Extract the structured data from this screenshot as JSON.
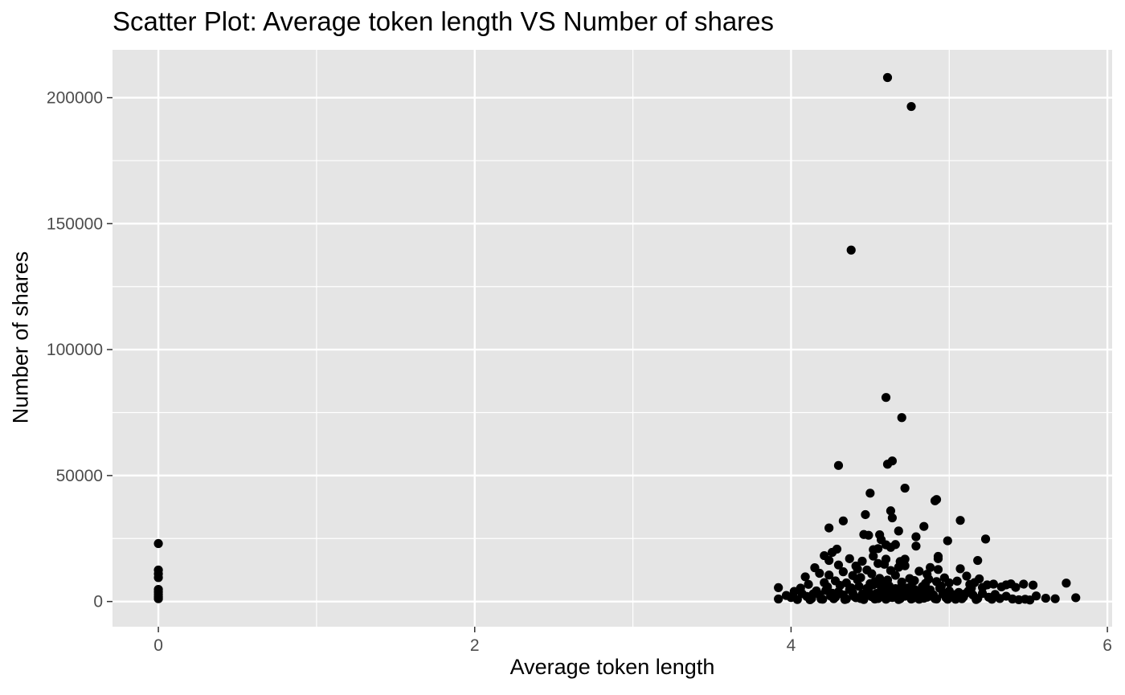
{
  "chart_data": {
    "type": "scatter",
    "title": "Scatter Plot: Average token length VS Number of shares",
    "xlabel": "Average token length",
    "ylabel": "Number of shares",
    "xlim": [
      -0.29,
      6.03
    ],
    "ylim": [
      -10000,
      219000
    ],
    "x_ticks": [
      0,
      2,
      4,
      6
    ],
    "x_tick_labels": [
      "0",
      "2",
      "4",
      "6"
    ],
    "x_minor_ticks": [
      1,
      3,
      5
    ],
    "y_ticks": [
      0,
      50000,
      100000,
      150000,
      200000
    ],
    "y_tick_labels": [
      "0",
      "50000",
      "100000",
      "150000",
      "200000"
    ],
    "y_minor_ticks": [
      25000,
      75000,
      125000,
      175000
    ],
    "grid": true,
    "panel_background": "#e5e5e5",
    "grid_color": "#ffffff",
    "point_color": "#000000",
    "points": [
      [
        0,
        23000
      ],
      [
        0,
        12500
      ],
      [
        0,
        11000
      ],
      [
        0,
        9500
      ],
      [
        0,
        4800
      ],
      [
        0,
        3800
      ],
      [
        0,
        2800
      ],
      [
        0,
        1800
      ],
      [
        0,
        1100
      ],
      [
        4.61,
        208000
      ],
      [
        4.76,
        196500
      ],
      [
        4.38,
        139500
      ],
      [
        4.6,
        81000
      ],
      [
        4.7,
        73000
      ],
      [
        4.3,
        54000
      ],
      [
        4.61,
        54500
      ],
      [
        4.64,
        55800
      ],
      [
        4.72,
        45000
      ],
      [
        4.5,
        43000
      ],
      [
        4.91,
        40000
      ],
      [
        4.92,
        40500
      ],
      [
        4.63,
        36000
      ],
      [
        4.47,
        34500
      ],
      [
        5.07,
        32200
      ],
      [
        4.33,
        32000
      ],
      [
        4.64,
        33200
      ],
      [
        4.84,
        29800
      ],
      [
        4.24,
        29200
      ],
      [
        4.68,
        28000
      ],
      [
        4.46,
        26600
      ],
      [
        4.49,
        26300
      ],
      [
        4.56,
        26500
      ],
      [
        4.79,
        25700
      ],
      [
        5.23,
        24800
      ],
      [
        4.99,
        24100
      ],
      [
        4.57,
        24500
      ],
      [
        4.6,
        22500
      ],
      [
        4.79,
        22000
      ],
      [
        4.66,
        22600
      ],
      [
        4.29,
        20800
      ],
      [
        4.52,
        20600
      ],
      [
        4.55,
        21000
      ],
      [
        4.63,
        21500
      ],
      [
        4.26,
        19500
      ],
      [
        4.52,
        18000
      ],
      [
        4.93,
        17900
      ],
      [
        4.93,
        17000
      ],
      [
        4.6,
        16800
      ],
      [
        4.72,
        16800
      ],
      [
        4.45,
        16000
      ],
      [
        4.37,
        17000
      ],
      [
        4.24,
        16300
      ],
      [
        4.21,
        18200
      ],
      [
        4.69,
        15900
      ],
      [
        5.18,
        16300
      ],
      [
        4.3,
        14500
      ],
      [
        4.59,
        14800
      ],
      [
        4.72,
        14200
      ],
      [
        4.88,
        13500
      ],
      [
        4.15,
        13400
      ],
      [
        4.48,
        12500
      ],
      [
        4.63,
        12300
      ],
      [
        4.81,
        12000
      ],
      [
        4.93,
        12700
      ],
      [
        5.07,
        13000
      ],
      [
        4.09,
        9800
      ],
      [
        4.18,
        11200
      ],
      [
        4.24,
        10500
      ],
      [
        4.33,
        11800
      ],
      [
        4.39,
        10300
      ],
      [
        4.44,
        9500
      ],
      [
        4.51,
        11000
      ],
      [
        4.56,
        9200
      ],
      [
        4.66,
        10400
      ],
      [
        4.75,
        9100
      ],
      [
        4.86,
        10800
      ],
      [
        4.97,
        9400
      ],
      [
        5.11,
        10100
      ],
      [
        5.19,
        9000
      ],
      [
        3.92,
        5500
      ],
      [
        4.02,
        4000
      ],
      [
        4.06,
        5300
      ],
      [
        4.11,
        6800
      ],
      [
        4.21,
        7500
      ],
      [
        4.28,
        8200
      ],
      [
        4.35,
        7400
      ],
      [
        4.42,
        8600
      ],
      [
        4.53,
        7900
      ],
      [
        4.61,
        8500
      ],
      [
        4.7,
        7700
      ],
      [
        4.78,
        8300
      ],
      [
        4.85,
        7200
      ],
      [
        4.92,
        7900
      ],
      [
        5.0,
        7400
      ],
      [
        5.05,
        8100
      ],
      [
        5.13,
        6800
      ],
      [
        5.16,
        7500
      ],
      [
        5.24,
        6600
      ],
      [
        5.28,
        6900
      ],
      [
        5.36,
        6600
      ],
      [
        5.39,
        7000
      ],
      [
        5.47,
        6900
      ],
      [
        5.53,
        6500
      ],
      [
        5.74,
        7300
      ],
      [
        5.42,
        5600
      ],
      [
        5.33,
        5800
      ],
      [
        5.21,
        5600
      ],
      [
        3.92,
        1000
      ],
      [
        3.97,
        2400
      ],
      [
        4.0,
        1600
      ],
      [
        4.04,
        800
      ],
      [
        4.07,
        3100
      ],
      [
        4.1,
        2000
      ],
      [
        4.13,
        1200
      ],
      [
        4.16,
        4200
      ],
      [
        4.18,
        2700
      ],
      [
        4.2,
        900
      ],
      [
        4.23,
        5800
      ],
      [
        4.26,
        3300
      ],
      [
        4.28,
        1700
      ],
      [
        4.31,
        6400
      ],
      [
        4.33,
        2600
      ],
      [
        4.35,
        1000
      ],
      [
        4.37,
        4700
      ],
      [
        4.39,
        3500
      ],
      [
        4.41,
        1500
      ],
      [
        4.43,
        6000
      ],
      [
        4.45,
        2900
      ],
      [
        4.46,
        800
      ],
      [
        4.48,
        5200
      ],
      [
        4.49,
        4100
      ],
      [
        4.51,
        1900
      ],
      [
        4.52,
        6600
      ],
      [
        4.54,
        3200
      ],
      [
        4.55,
        1200
      ],
      [
        4.57,
        5700
      ],
      [
        4.58,
        4400
      ],
      [
        4.59,
        2300
      ],
      [
        4.6,
        900
      ],
      [
        4.62,
        6200
      ],
      [
        4.63,
        3700
      ],
      [
        4.64,
        1600
      ],
      [
        4.66,
        5100
      ],
      [
        4.67,
        2800
      ],
      [
        4.68,
        800
      ],
      [
        4.7,
        6100
      ],
      [
        4.71,
        4000
      ],
      [
        4.72,
        2100
      ],
      [
        4.74,
        5400
      ],
      [
        4.75,
        3100
      ],
      [
        4.77,
        1300
      ],
      [
        4.78,
        4800
      ],
      [
        4.8,
        2500
      ],
      [
        4.81,
        900
      ],
      [
        4.83,
        5900
      ],
      [
        4.85,
        3400
      ],
      [
        4.86,
        1700
      ],
      [
        4.88,
        4600
      ],
      [
        4.9,
        2600
      ],
      [
        4.92,
        1000
      ],
      [
        4.94,
        5300
      ],
      [
        4.96,
        3000
      ],
      [
        4.98,
        1500
      ],
      [
        5.0,
        4200
      ],
      [
        5.02,
        2200
      ],
      [
        5.04,
        900
      ],
      [
        5.06,
        3600
      ],
      [
        5.09,
        1800
      ],
      [
        5.12,
        4100
      ],
      [
        5.15,
        2600
      ],
      [
        5.18,
        1200
      ],
      [
        5.21,
        3200
      ],
      [
        5.25,
        1700
      ],
      [
        5.29,
        2800
      ],
      [
        5.32,
        1200
      ],
      [
        5.36,
        2100
      ],
      [
        5.4,
        1000
      ],
      [
        5.44,
        700
      ],
      [
        5.48,
        900
      ],
      [
        5.51,
        600
      ],
      [
        5.55,
        2200
      ],
      [
        5.61,
        1300
      ],
      [
        5.67,
        1100
      ],
      [
        5.8,
        1500
      ],
      [
        4.12,
        700
      ],
      [
        4.19,
        1000
      ],
      [
        4.27,
        1100
      ],
      [
        4.34,
        800
      ],
      [
        4.44,
        1200
      ],
      [
        4.53,
        1000
      ],
      [
        4.61,
        1400
      ],
      [
        4.69,
        1100
      ],
      [
        4.76,
        1000
      ],
      [
        4.84,
        1300
      ],
      [
        4.91,
        1100
      ],
      [
        4.99,
        900
      ],
      [
        5.08,
        1100
      ],
      [
        5.17,
        800
      ],
      [
        5.27,
        900
      ],
      [
        4.25,
        2200
      ],
      [
        4.4,
        2000
      ],
      [
        4.56,
        2500
      ],
      [
        4.73,
        2300
      ],
      [
        4.89,
        2100
      ],
      [
        5.03,
        2700
      ],
      [
        4.14,
        3000
      ],
      [
        4.3,
        3900
      ],
      [
        4.47,
        3300
      ],
      [
        4.65,
        4400
      ],
      [
        4.82,
        3800
      ],
      [
        4.97,
        3300
      ],
      [
        5.1,
        3000
      ],
      [
        4.22,
        4400
      ],
      [
        4.38,
        5400
      ],
      [
        4.58,
        6700
      ],
      [
        4.76,
        6000
      ],
      [
        4.95,
        6100
      ],
      [
        5.14,
        5300
      ],
      [
        4.5,
        7100
      ],
      [
        4.87,
        8900
      ],
      [
        4.42,
        12900
      ],
      [
        4.68,
        13600
      ],
      [
        4.55,
        15100
      ],
      [
        4.41,
        14100
      ]
    ]
  }
}
